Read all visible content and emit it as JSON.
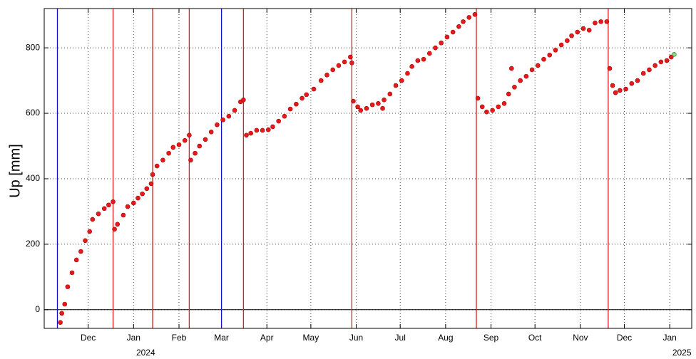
{
  "chart_data": {
    "type": "scatter",
    "y_label": "Up [mm]",
    "xlim": [
      0,
      442
    ],
    "ylim": [
      -57,
      920
    ],
    "xticks": [
      {
        "value": 30,
        "label": "Dec"
      },
      {
        "value": 61,
        "label": "Jan"
      },
      {
        "value": 92,
        "label": "Feb"
      },
      {
        "value": 121,
        "label": "Mar"
      },
      {
        "value": 152,
        "label": "Apr"
      },
      {
        "value": 182,
        "label": "May"
      },
      {
        "value": 213,
        "label": "Jun"
      },
      {
        "value": 243,
        "label": "Jul"
      },
      {
        "value": 274,
        "label": "Aug"
      },
      {
        "value": 305,
        "label": "Sep"
      },
      {
        "value": 335,
        "label": "Oct"
      },
      {
        "value": 366,
        "label": "Nov"
      },
      {
        "value": 396,
        "label": "Dec"
      },
      {
        "value": 427,
        "label": "Jan"
      }
    ],
    "year_ticks": [
      {
        "value": 61,
        "label": "2024"
      },
      {
        "value": 427,
        "label": "2025"
      }
    ],
    "yticks": [
      0,
      200,
      400,
      600,
      800
    ],
    "grid": true,
    "zero_line": true,
    "vlines": [
      {
        "x": 9,
        "color": "#1010c0"
      },
      {
        "x": 47,
        "color": "#e41a1c"
      },
      {
        "x": 74,
        "color": "#e41a1c"
      },
      {
        "x": 99,
        "color": "#e41a1c"
      },
      {
        "x": 121,
        "color": "#1010c0"
      },
      {
        "x": 136,
        "color": "#e41a1c"
      },
      {
        "x": 210,
        "color": "#e41a1c"
      },
      {
        "x": 295,
        "color": "#e41a1c"
      },
      {
        "x": 385,
        "color": "#e41a1c"
      }
    ],
    "series": [
      {
        "color": "#e41a1c",
        "x": [
          11,
          12,
          14,
          16,
          19,
          22,
          25,
          28,
          31,
          33,
          37,
          41,
          44,
          47,
          48,
          50,
          54,
          57,
          61,
          64,
          67,
          70,
          73,
          74,
          77,
          81,
          85,
          88,
          92,
          96,
          99,
          100,
          103,
          106,
          110,
          114,
          118,
          122,
          126,
          130,
          134,
          136,
          138,
          141,
          145,
          149,
          153,
          156,
          160,
          164,
          168,
          172,
          176,
          179,
          184,
          189,
          193,
          197,
          201,
          205,
          209,
          210,
          211,
          214,
          216,
          220,
          224,
          228,
          231,
          232,
          236,
          240,
          244,
          248,
          251,
          255,
          259,
          263,
          267,
          271,
          275,
          279,
          283,
          286,
          290,
          294,
          296,
          299,
          302,
          306,
          310,
          314,
          317,
          319,
          321,
          325,
          329,
          333,
          337,
          341,
          345,
          349,
          353,
          357,
          360,
          364,
          368,
          372,
          376,
          380,
          384,
          386,
          388,
          390,
          393,
          397,
          401,
          405,
          409,
          413,
          417,
          421,
          425,
          428
        ],
        "values": [
          -39,
          -11,
          17,
          70,
          113,
          152,
          178,
          211,
          239,
          276,
          293,
          309,
          320,
          330,
          246,
          261,
          289,
          315,
          326,
          341,
          354,
          370,
          385,
          413,
          439,
          457,
          478,
          496,
          504,
          517,
          533,
          457,
          478,
          500,
          520,
          543,
          565,
          580,
          591,
          609,
          635,
          641,
          533,
          539,
          548,
          548,
          550,
          559,
          576,
          591,
          613,
          628,
          646,
          657,
          674,
          700,
          717,
          733,
          746,
          757,
          772,
          754,
          637,
          620,
          609,
          615,
          626,
          630,
          615,
          641,
          659,
          685,
          700,
          722,
          743,
          761,
          765,
          783,
          800,
          815,
          833,
          848,
          865,
          880,
          893,
          902,
          646,
          620,
          604,
          609,
          620,
          630,
          659,
          737,
          680,
          700,
          713,
          733,
          746,
          765,
          778,
          793,
          809,
          822,
          837,
          848,
          859,
          854,
          876,
          880,
          880,
          737,
          685,
          663,
          670,
          674,
          691,
          700,
          722,
          733,
          746,
          757,
          761,
          772
        ]
      },
      {
        "color": "#7fd67f",
        "x": [
          430
        ],
        "values": [
          780
        ]
      }
    ]
  }
}
